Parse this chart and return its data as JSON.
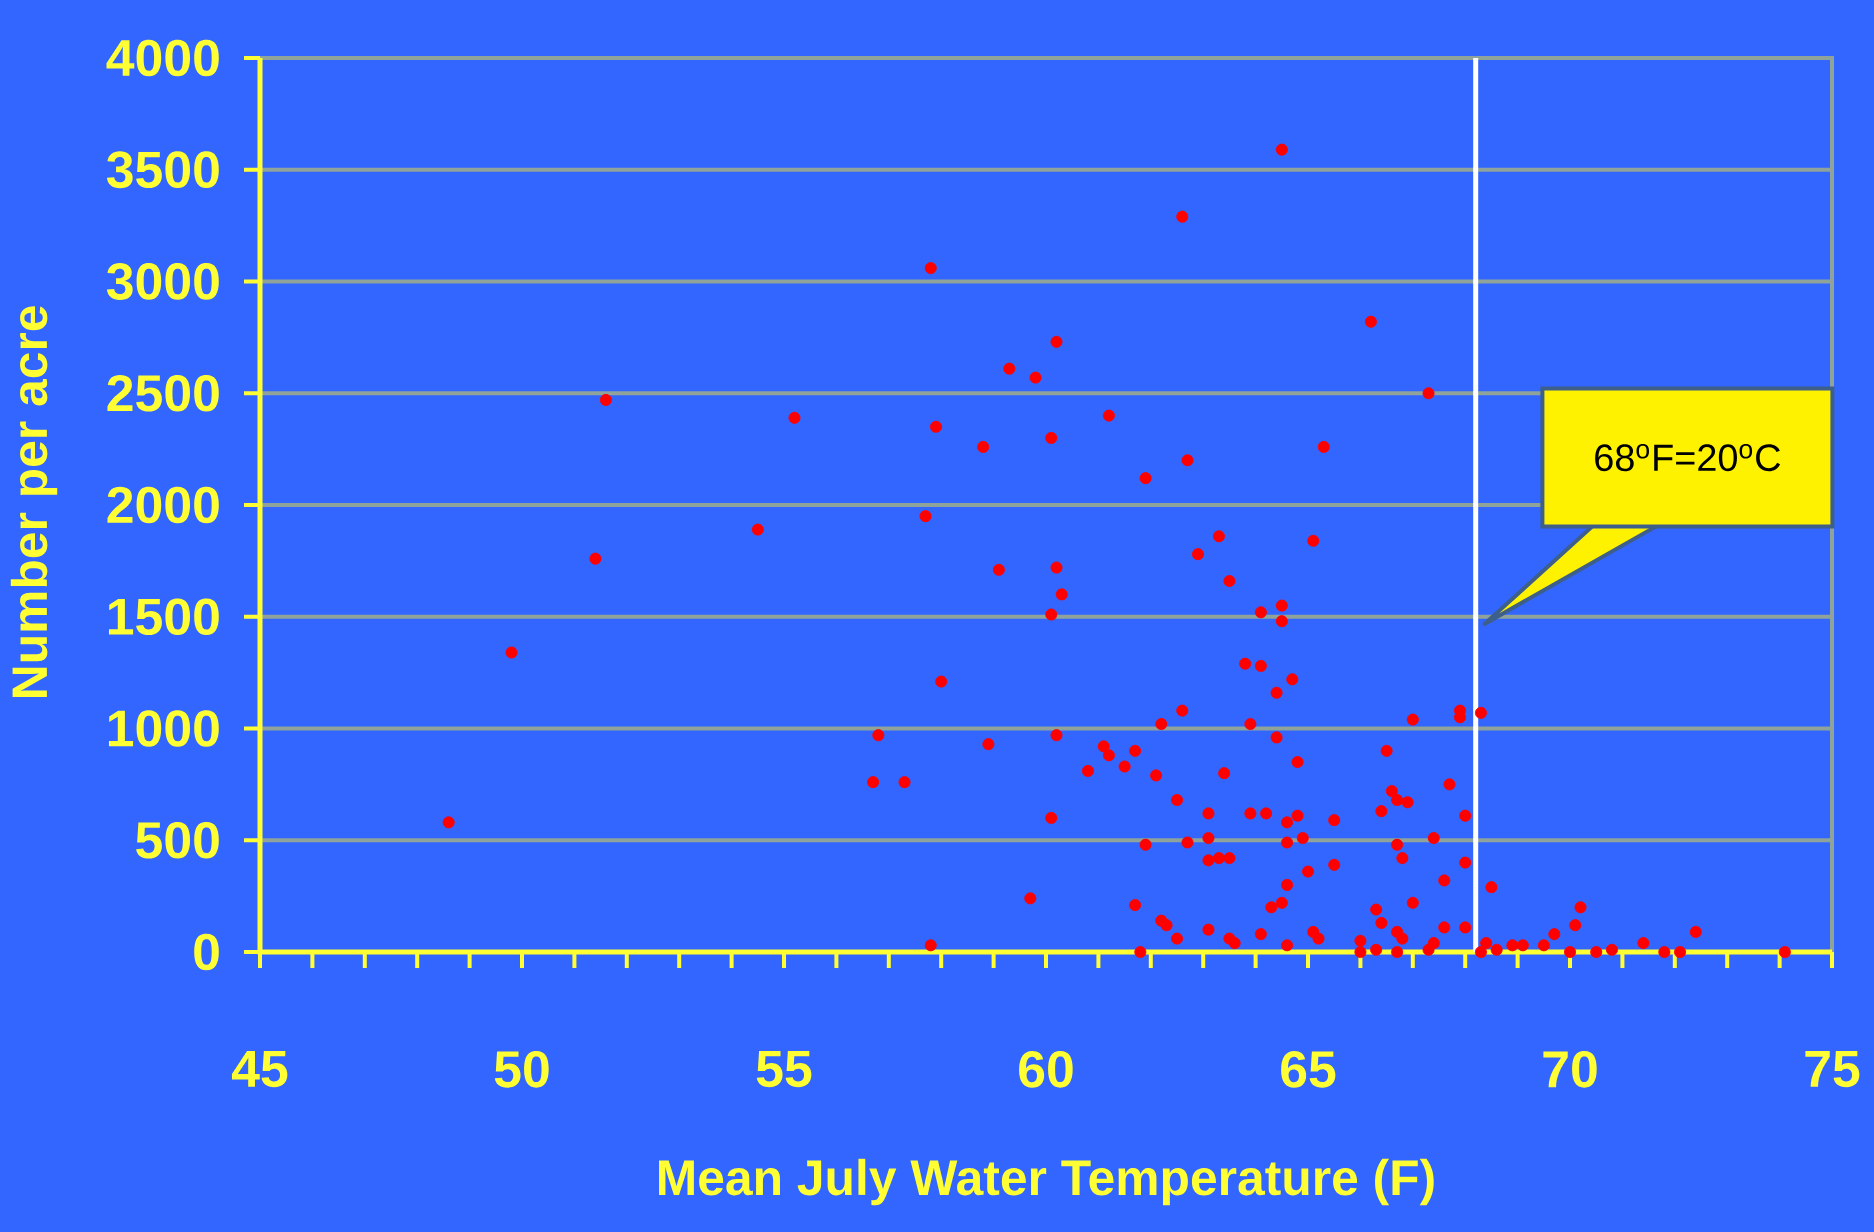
{
  "chart_data": {
    "type": "scatter",
    "xlabel": "Mean July Water Temperature (F)",
    "ylabel": "Number per acre",
    "color": "#ff0000",
    "grid": "y",
    "xlim": [
      45,
      75
    ],
    "ylim": [
      0,
      4000
    ],
    "xticks": [
      45,
      {
        "value": 46,
        "label": null
      },
      {
        "value": 47,
        "label": null
      },
      {
        "value": 48,
        "label": null
      },
      {
        "value": 49,
        "label": null
      },
      50,
      {
        "value": 51,
        "label": null
      },
      {
        "value": 52,
        "label": null
      },
      {
        "value": 53,
        "label": null
      },
      {
        "value": 54,
        "label": null
      },
      55,
      {
        "value": 56,
        "label": null
      },
      {
        "value": 57,
        "label": null
      },
      {
        "value": 58,
        "label": null
      },
      {
        "value": 59,
        "label": null
      },
      60,
      {
        "value": 61,
        "label": null
      },
      {
        "value": 62,
        "label": null
      },
      {
        "value": 63,
        "label": null
      },
      {
        "value": 64,
        "label": null
      },
      65,
      {
        "value": 66,
        "label": null
      },
      {
        "value": 67,
        "label": null
      },
      {
        "value": 68,
        "label": null
      },
      {
        "value": 69,
        "label": null
      },
      70,
      {
        "value": 71,
        "label": null
      },
      {
        "value": 72,
        "label": null
      },
      {
        "value": 73,
        "label": null
      },
      {
        "value": 74,
        "label": null
      },
      75
    ],
    "yticks": [
      0,
      500,
      1000,
      1500,
      2000,
      2500,
      3000,
      3500,
      4000
    ],
    "x": [
      48.6,
      49.8,
      51.4,
      51.6,
      54.5,
      55.2,
      56.7,
      56.8,
      57.3,
      57.7,
      57.8,
      57.8,
      57.9,
      58.0,
      58.8,
      58.9,
      59.1,
      59.3,
      59.7,
      59.8,
      60.1,
      60.1,
      60.1,
      60.2,
      60.2,
      60.2,
      60.3,
      60.8,
      61.1,
      61.2,
      61.2,
      61.5,
      61.7,
      61.7,
      61.8,
      61.9,
      61.9,
      62.1,
      62.2,
      62.2,
      62.3,
      62.5,
      62.5,
      62.6,
      62.6,
      62.7,
      62.7,
      62.9,
      63.1,
      63.1,
      63.1,
      63.1,
      63.3,
      63.3,
      63.4,
      63.5,
      63.5,
      63.5,
      63.6,
      63.8,
      63.9,
      63.9,
      64.1,
      64.1,
      64.1,
      64.2,
      64.3,
      64.4,
      64.4,
      64.5,
      64.5,
      64.5,
      64.5,
      64.6,
      64.6,
      64.6,
      64.6,
      64.7,
      64.8,
      64.8,
      64.9,
      65.0,
      65.1,
      65.1,
      65.2,
      65.3,
      65.5,
      65.5,
      66.0,
      66.0,
      66.2,
      66.3,
      66.3,
      66.4,
      66.4,
      66.5,
      66.6,
      66.7,
      66.7,
      66.7,
      66.7,
      66.8,
      66.8,
      66.9,
      67.0,
      67.0,
      67.3,
      67.3,
      67.4,
      67.4,
      67.6,
      67.6,
      67.7,
      67.9,
      67.9,
      68.0,
      68.0,
      68.0,
      68.3,
      68.3,
      68.4,
      68.5,
      68.6,
      68.9,
      69.1,
      69.5,
      69.7,
      70.1,
      70.2,
      70.0,
      70.5,
      70.8,
      71.4,
      71.8,
      72.1,
      72.4,
      74.1
    ],
    "values": [
      580,
      1340,
      1760,
      2470,
      1890,
      2390,
      760,
      970,
      760,
      1950,
      3060,
      30,
      2350,
      1210,
      2260,
      930,
      1710,
      2610,
      240,
      2570,
      2300,
      1510,
      600,
      1720,
      970,
      2730,
      1600,
      810,
      920,
      2400,
      880,
      830,
      900,
      210,
      0,
      480,
      2120,
      790,
      1020,
      140,
      120,
      680,
      60,
      1080,
      3290,
      2200,
      490,
      1780,
      620,
      510,
      410,
      100,
      420,
      1860,
      800,
      1660,
      420,
      60,
      40,
      1290,
      1020,
      620,
      80,
      1520,
      1280,
      620,
      200,
      1160,
      960,
      220,
      1550,
      3590,
      1480,
      490,
      580,
      30,
      300,
      1220,
      610,
      850,
      510,
      360,
      1840,
      90,
      60,
      2260,
      590,
      390,
      50,
      0,
      2820,
      10,
      190,
      630,
      130,
      900,
      720,
      0,
      480,
      680,
      90,
      420,
      60,
      670,
      220,
      1040,
      2500,
      10,
      510,
      40,
      110,
      320,
      750,
      1050,
      1080,
      110,
      610,
      400,
      1070,
      0,
      40,
      290,
      10,
      30,
      30,
      30,
      80,
      120,
      200,
      0,
      0,
      10,
      40,
      0,
      0,
      90,
      0
    ],
    "annotations": [
      "68$^{o}$F=20$^{o}$C"
    ],
    "ref_lines": [
      {
        "axis": "x",
        "value": 68.2,
        "color": "#ffffff"
      }
    ]
  }
}
